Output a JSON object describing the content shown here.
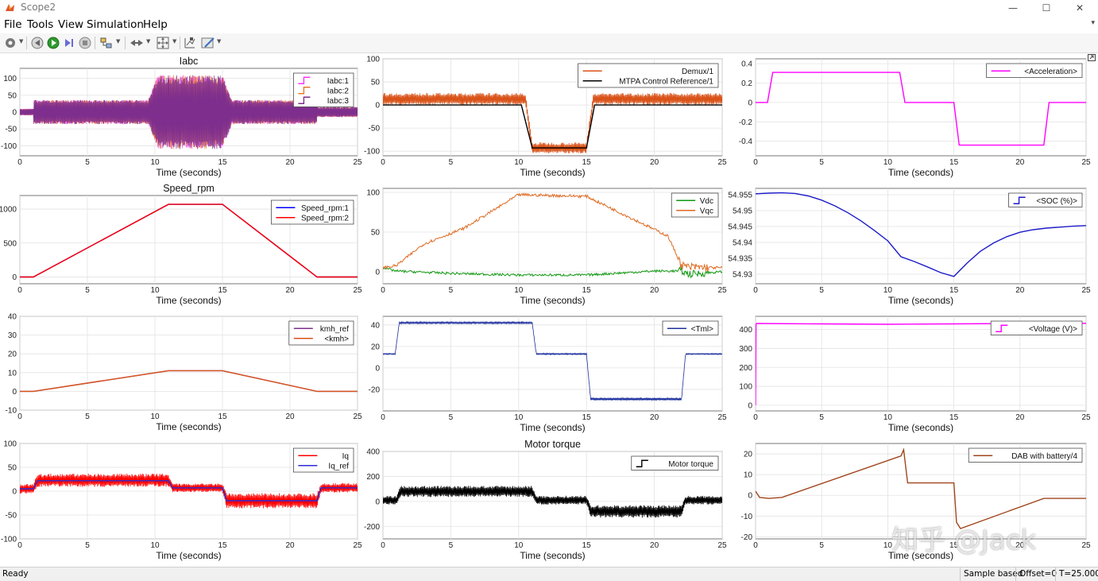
{
  "window": {
    "title": "Scope2",
    "minimize": "—",
    "maximize": "☐",
    "close": "✕"
  },
  "menu": {
    "items": [
      "File",
      "Tools",
      "View",
      "Simulation",
      "Help"
    ]
  },
  "toolbar": {
    "buttons": [
      "settings-icon",
      "step-back-icon",
      "run-icon",
      "step-forward-icon",
      "stop-icon",
      "highlight-icon",
      "navigation-icon",
      "zoom-icon",
      "cursor-measure-icon",
      "style-icon"
    ]
  },
  "status": {
    "ready": "Ready",
    "mode": "Sample based",
    "offset": "Offset=0",
    "time": "T=25.000"
  },
  "watermark": "知乎 @Jack",
  "chart_data": [
    {
      "id": "iabc",
      "type": "line",
      "title": "Iabc",
      "xlabel": "Time (seconds)",
      "ylim": [
        -130,
        130
      ],
      "yticks": [
        "100",
        "50",
        "0",
        "-50",
        "-100"
      ],
      "xticks": [
        "0",
        "5",
        "10",
        "15",
        "20",
        "25"
      ],
      "grid": true,
      "legend_position": "top-right",
      "legend_style": "step",
      "series": [
        {
          "name": "Iabc:1",
          "color": "#ff33ff",
          "kind": "noise",
          "x": [
            0,
            1,
            1,
            9.5,
            10.2,
            15,
            15.7,
            22,
            22,
            25
          ],
          "y": [
            10,
            10,
            36,
            36,
            110,
            110,
            36,
            36,
            15,
            15
          ]
        },
        {
          "name": "Iabc:2",
          "color": "#e87a2a",
          "kind": "noise",
          "x": [
            0,
            1,
            1,
            9.5,
            10.2,
            15,
            15.7,
            22,
            22,
            25
          ],
          "y": [
            10,
            10,
            36,
            36,
            110,
            110,
            36,
            36,
            15,
            15
          ]
        },
        {
          "name": "Iabc:3",
          "color": "#7e2f8e",
          "kind": "noise",
          "x": [
            0,
            1,
            1,
            9.5,
            10.2,
            15,
            15.7,
            22,
            22,
            25
          ],
          "y": [
            10,
            10,
            36,
            36,
            110,
            110,
            36,
            36,
            15,
            15
          ]
        }
      ]
    },
    {
      "id": "demux",
      "type": "line",
      "title": "",
      "xlabel": "Time (seconds)",
      "ylim": [
        -110,
        100
      ],
      "yticks": [
        "100",
        "50",
        "0",
        "-50",
        "-100"
      ],
      "xticks": [
        "0",
        "5",
        "10",
        "15",
        "20",
        "25"
      ],
      "grid": true,
      "legend_position": "top-right",
      "legend_style": "line",
      "series": [
        {
          "name": "Demux/1",
          "color": "#d95319",
          "kind": "band",
          "x": [
            0,
            10.5,
            11,
            15,
            15.5,
            25
          ],
          "y": [
            13,
            13,
            -93,
            -93,
            13,
            13
          ],
          "amp": [
            13,
            13,
            12,
            12,
            13,
            13
          ]
        },
        {
          "name": "MTPA Control Reference/1",
          "color": "#000000",
          "kind": "line",
          "x": [
            0,
            10.2,
            11,
            15,
            15.6,
            25
          ],
          "y": [
            0,
            0,
            -93,
            -93,
            0,
            0
          ]
        }
      ]
    },
    {
      "id": "accel",
      "type": "line",
      "title": "",
      "xlabel": "Time (seconds)",
      "ylim": [
        -0.55,
        0.45
      ],
      "yticks": [
        "0.4",
        "0.2",
        "0",
        "-0.2",
        "-0.4"
      ],
      "xticks": [
        "0",
        "5",
        "10",
        "15",
        "20",
        "25"
      ],
      "grid": true,
      "legend_position": "top-right",
      "legend_style": "line",
      "series": [
        {
          "name": "<Acceleration>",
          "color": "#ff00ff",
          "kind": "line",
          "x": [
            0,
            0.9,
            1.3,
            10.9,
            11.3,
            15,
            15.4,
            21.8,
            22.2,
            25
          ],
          "y": [
            0,
            0,
            0.31,
            0.31,
            0,
            0,
            -0.44,
            -0.44,
            0,
            0
          ]
        }
      ]
    },
    {
      "id": "speed",
      "type": "line",
      "title": "Speed_rpm",
      "xlabel": "Time (seconds)",
      "ylim": [
        -100,
        1200
      ],
      "yticks": [
        "1000",
        "500",
        "0"
      ],
      "xticks": [
        "0",
        "5",
        "10",
        "15",
        "20",
        "25"
      ],
      "grid": true,
      "legend_position": "top-right",
      "legend_style": "line",
      "series": [
        {
          "name": "Speed_rpm:1",
          "color": "#0000ff",
          "kind": "line",
          "x": [
            0,
            1,
            11,
            15,
            22,
            25
          ],
          "y": [
            0,
            0,
            1070,
            1070,
            0,
            0
          ]
        },
        {
          "name": "Speed_rpm:2",
          "color": "#ff0000",
          "kind": "line",
          "x": [
            0,
            1,
            11,
            15,
            22,
            25
          ],
          "y": [
            0,
            0,
            1070,
            1070,
            0,
            0
          ]
        }
      ]
    },
    {
      "id": "vdc",
      "type": "line",
      "title": "",
      "xlabel": "Time (seconds)",
      "ylim": [
        -15,
        105
      ],
      "yticks": [
        "100",
        "50",
        "0"
      ],
      "xticks": [
        "0",
        "5",
        "10",
        "15",
        "20",
        "25"
      ],
      "grid": true,
      "legend_position": "top-right",
      "legend_style": "line",
      "series": [
        {
          "name": "Vdc",
          "color": "#119911",
          "kind": "wiggle",
          "x": [
            0,
            1,
            5,
            10,
            15,
            20,
            22,
            22.5,
            25
          ],
          "y": [
            5,
            1,
            -2,
            -4,
            -4,
            1,
            1,
            -3,
            0
          ],
          "amp": 1.5
        },
        {
          "name": "Vqc",
          "color": "#dd6a22",
          "kind": "wiggle",
          "x": [
            0,
            1,
            3,
            6,
            10,
            15,
            18,
            21,
            22,
            22.5,
            25
          ],
          "y": [
            5,
            8,
            35,
            55,
            97,
            95,
            70,
            45,
            8,
            6,
            5
          ],
          "amp": 1.8
        }
      ]
    },
    {
      "id": "soc",
      "type": "line",
      "title": "",
      "xlabel": "Time (seconds)",
      "ylim": [
        54.927,
        54.957
      ],
      "yticks": [
        "54.955",
        "54.95",
        "54.945",
        "54.94",
        "54.935",
        "54.93"
      ],
      "xticks": [
        "0",
        "5",
        "10",
        "15",
        "20",
        "25"
      ],
      "grid": true,
      "legend_position": "top-right",
      "legend_style": "step",
      "series": [
        {
          "name": "<SOC (%)>",
          "color": "#1c1cc8",
          "kind": "line",
          "x": [
            0,
            1,
            2,
            3,
            4,
            5,
            6,
            7,
            8,
            9,
            10,
            11,
            12,
            13,
            14,
            15,
            16,
            17,
            18,
            19,
            20,
            21,
            22,
            23,
            24,
            25
          ],
          "y": [
            54.9553,
            54.9555,
            54.9556,
            54.9554,
            54.9546,
            54.9533,
            54.9515,
            54.9493,
            54.9467,
            54.9437,
            54.9405,
            54.9355,
            54.934,
            54.9323,
            54.9305,
            54.9293,
            54.9335,
            54.9372,
            54.9398,
            54.9418,
            54.9432,
            54.944,
            54.9445,
            54.9448,
            54.9451,
            54.9453
          ]
        }
      ]
    },
    {
      "id": "kmh",
      "type": "line",
      "title": "",
      "xlabel": "Time (seconds)",
      "ylim": [
        -10,
        40
      ],
      "yticks": [
        "40",
        "30",
        "20",
        "10",
        "0",
        "-10"
      ],
      "xticks": [
        "0",
        "5",
        "10",
        "15",
        "20",
        "25"
      ],
      "grid": true,
      "legend_position": "top-right",
      "legend_style": "line",
      "series": [
        {
          "name": "kmh_ref",
          "color": "#7e2f8e",
          "kind": "line",
          "x": [
            0,
            1,
            11,
            15,
            22,
            25
          ],
          "y": [
            0,
            0,
            11,
            11,
            0,
            0
          ]
        },
        {
          "name": "<kmh>",
          "color": "#d95319",
          "kind": "line",
          "x": [
            0,
            1,
            11,
            15,
            22,
            25
          ],
          "y": [
            0,
            0,
            11,
            11,
            0,
            0
          ]
        }
      ]
    },
    {
      "id": "tml",
      "type": "line",
      "title": "",
      "xlabel": "Time (seconds)",
      "ylim": [
        -40,
        48
      ],
      "yticks": [
        "40",
        "20",
        "0",
        "-20"
      ],
      "xticks": [
        "0",
        "5",
        "10",
        "15",
        "20",
        "25"
      ],
      "grid": true,
      "legend_position": "top-right",
      "legend_style": "line",
      "series": [
        {
          "name": "<Tml>",
          "color": "#1c2f9e",
          "kind": "band",
          "x": [
            0,
            0.9,
            1.2,
            11,
            11.3,
            15,
            15.3,
            22,
            22.3,
            25
          ],
          "y": [
            13,
            13,
            42,
            42,
            13,
            13,
            -29,
            -29,
            13,
            13
          ],
          "amp": [
            0.5,
            0.5,
            0.8,
            0.8,
            0.6,
            0.6,
            1.2,
            1.2,
            0.5,
            0.5
          ]
        }
      ]
    },
    {
      "id": "voltage",
      "type": "line",
      "title": "",
      "xlabel": "Time (seconds)",
      "ylim": [
        -30,
        470
      ],
      "yticks": [
        "400",
        "300",
        "200",
        "100",
        "0"
      ],
      "xticks": [
        "0",
        "5",
        "10",
        "15",
        "20",
        "25"
      ],
      "grid": true,
      "legend_position": "top-right",
      "legend_style": "step",
      "series": [
        {
          "name": "<Voltage (V)>",
          "color": "#ff00ff",
          "kind": "line",
          "x": [
            0,
            0.03,
            0.1,
            5,
            10,
            15,
            20,
            25
          ],
          "y": [
            0,
            430,
            432,
            430,
            428,
            430,
            432,
            433
          ]
        }
      ]
    },
    {
      "id": "iq",
      "type": "line",
      "title": "",
      "xlabel": "Time (seconds)",
      "ylim": [
        -100,
        100
      ],
      "yticks": [
        "100",
        "50",
        "0",
        "-50",
        "-100"
      ],
      "xticks": [
        "0",
        "5",
        "10",
        "15",
        "20",
        "25"
      ],
      "grid": true,
      "legend_position": "top-right",
      "legend_style": "line",
      "series": [
        {
          "name": "Iq",
          "color": "#ff0000",
          "kind": "band",
          "x": [
            0,
            1,
            1.3,
            11,
            11.3,
            15,
            15.3,
            22,
            22.3,
            25
          ],
          "y": [
            5,
            5,
            23,
            23,
            7,
            7,
            -20,
            -20,
            7,
            7
          ],
          "amp": [
            10,
            10,
            14,
            14,
            9,
            9,
            16,
            16,
            10,
            10
          ]
        },
        {
          "name": "Iq_ref",
          "color": "#2b2bd4",
          "kind": "line",
          "x": [
            0,
            1,
            1.3,
            11,
            11.3,
            15,
            15.3,
            22,
            22.3,
            25
          ],
          "y": [
            5,
            5,
            22,
            22,
            7,
            7,
            -20,
            -20,
            7,
            7
          ]
        }
      ]
    },
    {
      "id": "motortorque",
      "type": "line",
      "title": "Motor torque",
      "xlabel": "Time (seconds)",
      "ylim": [
        -300,
        400
      ],
      "yticks": [
        "400",
        "200",
        "0",
        "-200"
      ],
      "xticks": [
        "0",
        "5",
        "10",
        "15",
        "20",
        "25"
      ],
      "grid": true,
      "legend_position": "top-right",
      "legend_style": "step",
      "series": [
        {
          "name": "Motor torque",
          "color": "#000000",
          "kind": "band",
          "x": [
            0,
            1,
            1.3,
            11,
            11.3,
            15,
            15.3,
            22,
            22.3,
            25
          ],
          "y": [
            10,
            10,
            80,
            80,
            10,
            10,
            -80,
            -80,
            10,
            10
          ],
          "amp": [
            35,
            35,
            45,
            45,
            35,
            35,
            50,
            50,
            35,
            35
          ]
        }
      ]
    },
    {
      "id": "dab",
      "type": "line",
      "title": "",
      "xlabel": "Time (seconds)",
      "ylim": [
        -21,
        25
      ],
      "yticks": [
        "20",
        "10",
        "0",
        "-10",
        "-20"
      ],
      "xticks": [
        "0",
        "5",
        "10",
        "15",
        "20",
        "25"
      ],
      "grid": true,
      "legend_position": "top-right",
      "legend_style": "line",
      "series": [
        {
          "name": "DAB with battery/4",
          "color": "#a0461e",
          "kind": "line",
          "x": [
            0,
            0.3,
            1,
            2,
            11,
            11.2,
            11.5,
            15,
            15.2,
            15.5,
            21.8,
            22.2,
            25
          ],
          "y": [
            2,
            -1,
            -1.5,
            -1,
            19,
            22,
            6,
            6,
            -13,
            -16,
            -1.5,
            -1.5,
            -1.5
          ]
        }
      ]
    }
  ]
}
